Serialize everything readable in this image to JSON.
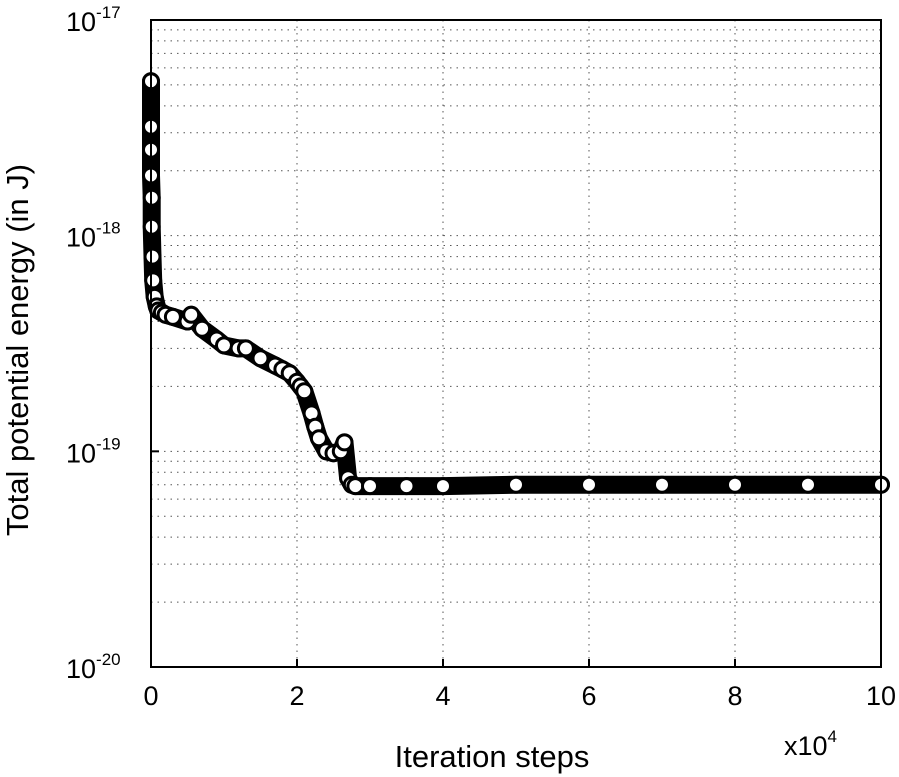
{
  "chart_data": {
    "type": "scatter",
    "title": "",
    "xlabel": "Iteration steps",
    "ylabel": "Total potential energy (in J)",
    "x_multiplier_label": {
      "base": "x10",
      "exponent": "4"
    },
    "x_scale_factor": 10000,
    "xlim": [
      0,
      10
    ],
    "ylim": [
      1e-20,
      1e-17
    ],
    "yscale": "log",
    "grid": true,
    "legend": "none",
    "marker": "open-circle",
    "marker_color": "#000000",
    "x_ticks": [
      {
        "value": 0,
        "label": "0"
      },
      {
        "value": 2,
        "label": "2"
      },
      {
        "value": 4,
        "label": "4"
      },
      {
        "value": 6,
        "label": "6"
      },
      {
        "value": 8,
        "label": "8"
      },
      {
        "value": 10,
        "label": "10"
      }
    ],
    "y_ticks": [
      {
        "value": 1e-17,
        "base": "10",
        "exponent": "-17"
      },
      {
        "value": 1e-18,
        "base": "10",
        "exponent": "-18"
      },
      {
        "value": 1e-19,
        "base": "10",
        "exponent": "-19"
      },
      {
        "value": 1e-20,
        "base": "10",
        "exponent": "-20"
      }
    ],
    "series": [
      {
        "x": [
          0.0,
          0.0,
          0.0,
          0.0,
          0.01,
          0.01,
          0.02,
          0.03,
          0.05,
          0.08,
          0.1,
          0.15,
          0.2,
          0.3,
          0.5,
          0.55,
          0.7,
          0.9,
          1.0,
          1.2,
          1.3,
          1.5,
          1.7,
          1.8,
          1.9,
          2.0,
          2.05,
          2.1,
          2.2,
          2.25,
          2.3,
          2.4,
          2.5,
          2.6,
          2.65,
          2.7,
          2.75,
          2.8,
          3.0,
          3.5,
          4.0,
          5.0,
          6.0,
          7.0,
          8.0,
          9.0,
          10.0
        ],
        "y": [
          5.2e-18,
          3.2e-18,
          2.5e-18,
          1.9e-18,
          1.5e-18,
          1.1e-18,
          8e-19,
          6.2e-19,
          5.2e-19,
          4.7e-19,
          4.5e-19,
          4.4e-19,
          4.3e-19,
          4.2e-19,
          4e-19,
          4.3e-19,
          3.7e-19,
          3.3e-19,
          3.1e-19,
          3e-19,
          3e-19,
          2.7e-19,
          2.5e-19,
          2.4e-19,
          2.3e-19,
          2.1e-19,
          2e-19,
          1.9e-19,
          1.5e-19,
          1.3e-19,
          1.15e-19,
          1e-19,
          9.8e-20,
          1e-19,
          1.1e-19,
          7.5e-20,
          7e-20,
          6.9e-20,
          6.9e-20,
          6.9e-20,
          6.9e-20,
          7e-20,
          7e-20,
          7e-20,
          7e-20,
          7e-20,
          7e-20
        ]
      }
    ]
  }
}
